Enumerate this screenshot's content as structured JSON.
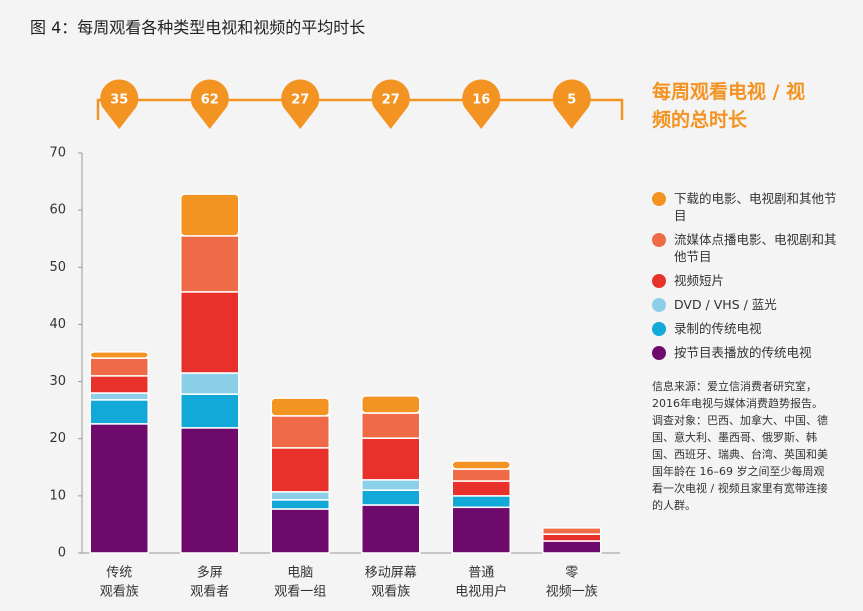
{
  "chart_data": {
    "type": "stacked-bar",
    "title": "图 4：每周观看各种类型电视和视频的平均时长",
    "categories": [
      [
        "传统",
        "观看族"
      ],
      [
        "多屏",
        "观看者"
      ],
      [
        "电脑",
        "观看一组"
      ],
      [
        "移动屏幕",
        "观看族"
      ],
      [
        "普通",
        "电视用户"
      ],
      [
        "零",
        "视频一族"
      ]
    ],
    "series": [
      {
        "name": "下载的电影、电视剧和其他节目",
        "color": "#f39322",
        "values": [
          1.1,
          7.3,
          3.1,
          3,
          1.4,
          0
        ]
      },
      {
        "name": "流媒体点播电影、电视剧和其他节目",
        "color": "#ef6a47",
        "values": [
          3.1,
          9.8,
          5.6,
          4.4,
          2.1,
          1.1
        ]
      },
      {
        "name": "视频短片",
        "color": "#e8312a",
        "values": [
          3,
          14.2,
          7.7,
          7.3,
          2.6,
          1.2
        ]
      },
      {
        "name": "DVD / VHS / 蓝光",
        "color": "#8ccfe9",
        "values": [
          1.2,
          3.7,
          1.4,
          1.8,
          0,
          0
        ]
      },
      {
        "name": "录制的传统电视",
        "color": "#12a8d8",
        "values": [
          4.2,
          5.9,
          1.6,
          2.6,
          2,
          0
        ]
      },
      {
        "name": "按节目表播放的传统电视",
        "color": "#6e0a6b",
        "values": [
          22.6,
          21.9,
          7.7,
          8.4,
          8,
          2.1
        ]
      }
    ],
    "totals": {
      "label": "每周观看电视 / 视频的总时长",
      "color": "#f39322",
      "values": [
        35,
        62,
        27,
        27,
        16,
        5
      ]
    },
    "ylim": [
      0,
      70
    ],
    "yticks": [
      0,
      10,
      20,
      30,
      40,
      50,
      60,
      70
    ],
    "grid": false,
    "notes": [
      "信息来源：爱立信消费者研究室，2016年电视与媒体消费趋势报告。",
      "调查对象：巴西、加拿大、中国、德国、意大利、墨西哥、俄罗斯、韩国、西班牙、瑞典、台湾、英国和美国年龄在 16–69 岁之间至少每周观看一次电视 / 视频且家里有宽带连接的人群。"
    ]
  }
}
